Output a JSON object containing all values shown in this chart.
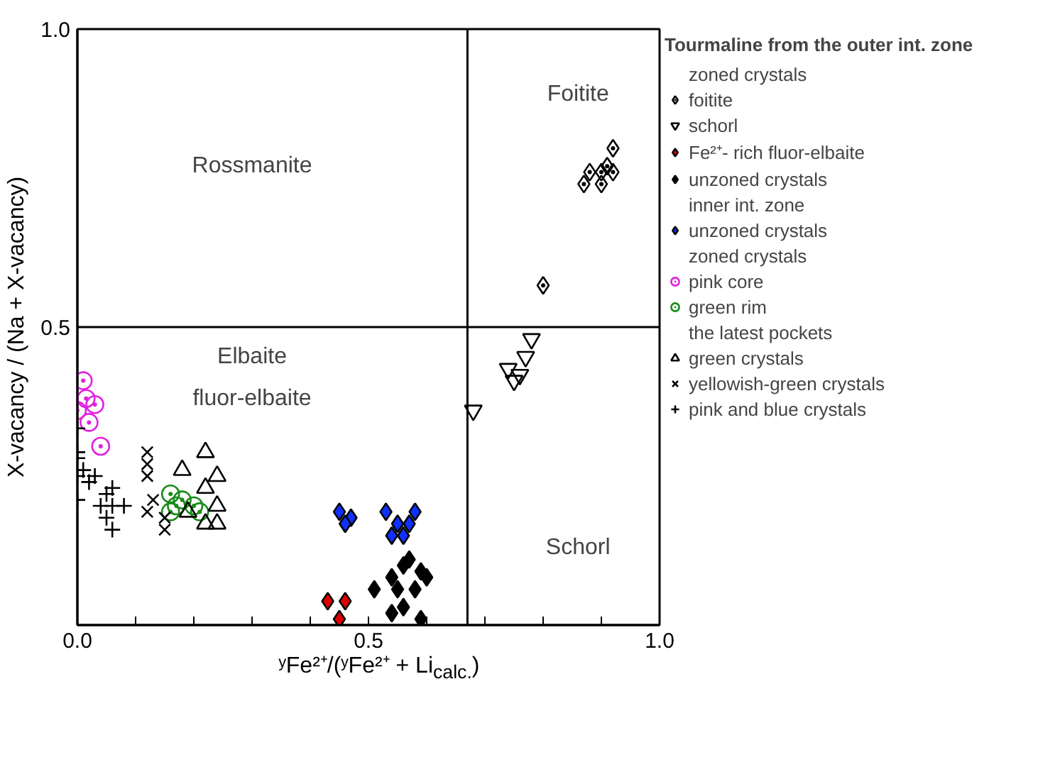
{
  "chart_data": {
    "type": "scatter",
    "xlabel": "ʸFe²⁺/(ʸFe²⁺ + Li$_{calc.}$)",
    "ylabel": "X-vacancy / (Na + X-vacancy)",
    "legend_title": "Tourmaline from the outer int. zone",
    "xlim": [
      0,
      1
    ],
    "ylim": [
      0,
      1
    ],
    "xticks": [
      {
        "value": 0,
        "label": "0.0"
      },
      {
        "value": 0.1,
        "label": null
      },
      {
        "value": 0.2,
        "label": null
      },
      {
        "value": 0.3,
        "label": null
      },
      {
        "value": 0.4,
        "label": null
      },
      0.5,
      {
        "value": 0.6,
        "label": null
      },
      {
        "value": 0.7,
        "label": null
      },
      {
        "value": 0.8,
        "label": null
      },
      {
        "value": 0.9,
        "label": null
      },
      {
        "value": 1,
        "label": "1.0"
      }
    ],
    "yticks": [
      0.5,
      {
        "value": 1,
        "label": "1.0"
      }
    ],
    "grid": false,
    "legend": "right",
    "ref_lines": [
      {
        "axis": "y",
        "value": 0.5,
        "color": "#000000"
      },
      {
        "axis": "x",
        "value": 0.67,
        "color": "#000000"
      }
    ],
    "annotations": [
      "zoned crystals",
      "inner int. zone",
      "zoned crystals",
      "the latest pockets",
      "Rossmanite",
      "Foitite",
      "Elbaite",
      "fluor-elbaite",
      "Schorl"
    ],
    "series": [
      {
        "name": "foitite",
        "color": "#000000",
        "marker": "diamond",
        "x": [
          0.92,
          0.91,
          0.9,
          0.88,
          0.92,
          0.87,
          0.9,
          0.8
        ],
        "values": [
          0.8,
          0.77,
          0.76,
          0.76,
          0.76,
          0.74,
          0.74,
          0.57
        ]
      },
      {
        "name": "schorl",
        "color": "#000000",
        "marker": "triangle",
        "x": [
          0.78,
          0.77,
          0.74,
          0.76,
          0.75,
          0.68
        ],
        "values": [
          0.48,
          0.45,
          0.43,
          0.42,
          0.41,
          0.36
        ]
      },
      {
        "name": "Fe²⁺- rich fluor-elbaite",
        "color": "#dd0000",
        "marker": "diamond",
        "x": [
          0.43,
          0.45,
          0.46
        ],
        "values": [
          0.04,
          0.01,
          0.04
        ]
      },
      {
        "name": "unzoned crystals",
        "color": "#000000",
        "marker": "diamond",
        "x": [
          0.51,
          0.54,
          0.56,
          0.57,
          0.59,
          0.55,
          0.58,
          0.6,
          0.56,
          0.59,
          0.54
        ],
        "values": [
          0.06,
          0.08,
          0.1,
          0.11,
          0.09,
          0.06,
          0.06,
          0.08,
          0.03,
          0.01,
          0.02
        ]
      },
      {
        "name": "unzoned crystals",
        "color": "#1030ff",
        "marker": "diamond",
        "x": [
          0.45,
          0.47,
          0.46,
          0.53,
          0.55,
          0.57,
          0.58,
          0.54,
          0.56
        ],
        "values": [
          0.19,
          0.18,
          0.17,
          0.19,
          0.17,
          0.17,
          0.19,
          0.15,
          0.15
        ]
      },
      {
        "name": "pink core",
        "color": "#e020e0",
        "marker": "circle",
        "x": [
          0.01,
          0.015,
          0.03,
          0.0,
          0.02,
          0.04
        ],
        "values": [
          0.41,
          0.38,
          0.37,
          0.36,
          0.34,
          0.3
        ]
      },
      {
        "name": "green rim",
        "color": "#1a8a1a",
        "marker": "circle",
        "x": [
          0.16,
          0.18,
          0.17,
          0.2,
          0.16,
          0.21
        ],
        "values": [
          0.22,
          0.21,
          0.2,
          0.2,
          0.19,
          0.19
        ]
      },
      {
        "name": "green crystals",
        "color": "#000000",
        "marker": "triangle",
        "x": [
          0.22,
          0.18,
          0.24,
          0.22,
          0.24,
          0.19,
          0.22,
          0.24
        ],
        "values": [
          0.29,
          0.26,
          0.25,
          0.23,
          0.2,
          0.19,
          0.17,
          0.17
        ]
      },
      {
        "name": "yellowish-green crystals",
        "color": "#000000",
        "marker": "cross",
        "x": [
          0.12,
          0.12,
          0.12,
          0.13,
          0.12,
          0.15,
          0.15
        ],
        "values": [
          0.29,
          0.27,
          0.25,
          0.21,
          0.19,
          0.18,
          0.16
        ]
      },
      {
        "name": "pink and blue crystals",
        "color": "#000000",
        "marker": "cross",
        "x": [
          0.0,
          0.0,
          0.0,
          0.01,
          0.03,
          0.0,
          0.02,
          0.06,
          0.05,
          0.0,
          0.08,
          0.04,
          0.06,
          0.05,
          0.06
        ],
        "values": [
          0.33,
          0.29,
          0.28,
          0.26,
          0.25,
          0.25,
          0.24,
          0.23,
          0.22,
          0.21,
          0.2,
          0.2,
          0.2,
          0.18,
          0.16
        ]
      }
    ]
  }
}
